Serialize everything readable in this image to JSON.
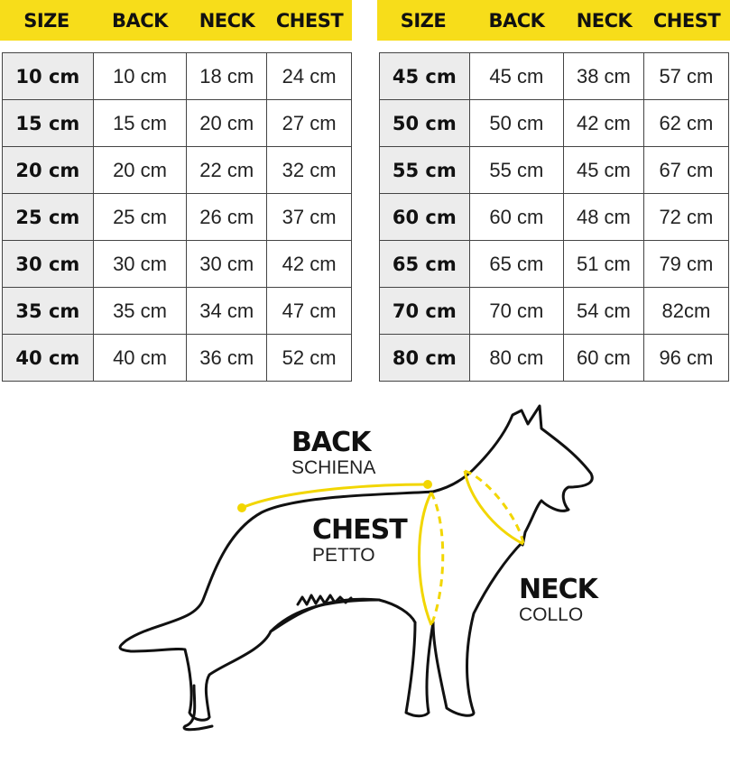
{
  "headers": [
    "SIZE",
    "BACK",
    "NECK",
    "CHEST"
  ],
  "left_table": [
    [
      "10 cm",
      "10 cm",
      "18 cm",
      "24 cm"
    ],
    [
      "15 cm",
      "15 cm",
      "20 cm",
      "27 cm"
    ],
    [
      "20 cm",
      "20 cm",
      "22 cm",
      "32 cm"
    ],
    [
      "25 cm",
      "25 cm",
      "26 cm",
      "37 cm"
    ],
    [
      "30 cm",
      "30 cm",
      "30 cm",
      "42 cm"
    ],
    [
      "35 cm",
      "35 cm",
      "34 cm",
      "47 cm"
    ],
    [
      "40 cm",
      "40 cm",
      "36 cm",
      "52 cm"
    ]
  ],
  "right_table": [
    [
      "45 cm",
      "45 cm",
      "38 cm",
      "57 cm"
    ],
    [
      "50 cm",
      "50 cm",
      "42 cm",
      "62 cm"
    ],
    [
      "55 cm",
      "55 cm",
      "45 cm",
      "67 cm"
    ],
    [
      "60 cm",
      "60 cm",
      "48 cm",
      "72 cm"
    ],
    [
      "65 cm",
      "65 cm",
      "51 cm",
      "79 cm"
    ],
    [
      "70 cm",
      "70 cm",
      "54 cm",
      "82cm"
    ],
    [
      "80 cm",
      "80 cm",
      "60 cm",
      "96 cm"
    ]
  ],
  "diagram": {
    "back": {
      "title": "BACK",
      "subtitle": "SCHIENA"
    },
    "chest": {
      "title": "CHEST",
      "subtitle": "PETTO"
    },
    "neck": {
      "title": "NECK",
      "subtitle": "COLLO"
    }
  },
  "colors": {
    "accent": "#f7dd1a",
    "size_cell": "#ececec"
  }
}
